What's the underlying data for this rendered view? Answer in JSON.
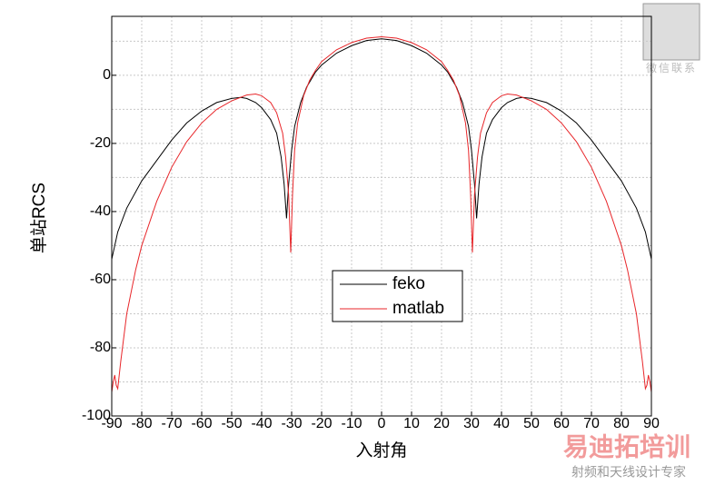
{
  "chart_data": {
    "type": "line",
    "xlabel": "入射角",
    "ylabel": "单站RCS",
    "xlim": [
      -90,
      90
    ],
    "ylim": [
      -100,
      17.3
    ],
    "xticks": [
      -90,
      -80,
      -70,
      -60,
      -50,
      -40,
      -30,
      -20,
      -10,
      0,
      10,
      20,
      30,
      40,
      50,
      60,
      70,
      80,
      90
    ],
    "yticks": [
      -100,
      -80,
      -60,
      -40,
      -20,
      0
    ],
    "y_minor_grid": [
      -90,
      -70,
      -50,
      -30,
      -10,
      10
    ],
    "grid": true,
    "legend": "center",
    "series": [
      {
        "name": "feko",
        "color": "#000000",
        "x": [
          -90,
          -88,
          -85,
          -80,
          -75,
          -70,
          -65,
          -60,
          -55,
          -50,
          -47,
          -45,
          -42,
          -40,
          -37,
          -35,
          -33.5,
          -32.5,
          -31.7,
          -31,
          -30,
          -29,
          -27,
          -25,
          -22,
          -20,
          -15,
          -10,
          -5,
          0,
          5,
          10,
          15,
          20,
          22,
          25,
          27,
          29,
          30,
          31,
          31.7,
          32.5,
          33.5,
          35,
          37,
          40,
          42,
          45,
          47,
          50,
          55,
          60,
          65,
          70,
          75,
          80,
          85,
          88,
          90
        ],
        "values": [
          -54,
          -46,
          -39,
          -31,
          -25,
          -19,
          -14,
          -10.5,
          -8,
          -6.8,
          -6.5,
          -6.8,
          -8,
          -9.5,
          -13,
          -17,
          -24,
          -32,
          -42,
          -32,
          -22,
          -15,
          -8,
          -3.5,
          1,
          3,
          6.5,
          8.7,
          10.2,
          10.7,
          10.2,
          8.7,
          6.5,
          3,
          1,
          -3.5,
          -8,
          -15,
          -22,
          -32,
          -42,
          -32,
          -24,
          -17,
          -13,
          -9.5,
          -8,
          -6.8,
          -6.5,
          -6.8,
          -8,
          -10.5,
          -14,
          -19,
          -25,
          -31,
          -39,
          -46,
          -54
        ]
      },
      {
        "name": "matlab",
        "color": "#e8262a",
        "x": [
          -90,
          -89.5,
          -89,
          -88.5,
          -88,
          -87,
          -85,
          -82,
          -80,
          -75,
          -70,
          -65,
          -60,
          -55,
          -50,
          -45,
          -42,
          -40,
          -37,
          -35,
          -33,
          -32,
          -31,
          -30.3,
          -29.7,
          -29,
          -28,
          -26,
          -24,
          -22,
          -20,
          -15,
          -10,
          -5,
          0,
          5,
          10,
          15,
          20,
          22,
          24,
          26,
          28,
          29,
          29.7,
          30.3,
          31,
          32,
          33,
          35,
          37,
          40,
          42,
          45,
          50,
          55,
          60,
          65,
          70,
          75,
          80,
          82,
          85,
          87,
          88,
          88.5,
          89,
          89.5,
          90
        ],
        "values": [
          -93,
          -90,
          -88,
          -91,
          -92,
          -84,
          -70,
          -57,
          -50,
          -37,
          -27,
          -19.5,
          -14,
          -10,
          -7.5,
          -5.8,
          -5.5,
          -6,
          -8,
          -11,
          -17,
          -24,
          -35,
          -52,
          -35,
          -22,
          -14,
          -6,
          -1.5,
          1.5,
          4,
          7.5,
          9.6,
          10.9,
          11.3,
          10.9,
          9.6,
          7.5,
          4,
          1.5,
          -1.5,
          -6,
          -14,
          -22,
          -35,
          -52,
          -35,
          -24,
          -17,
          -11,
          -8,
          -6,
          -5.5,
          -5.8,
          -7.5,
          -10,
          -14,
          -19.5,
          -27,
          -37,
          -50,
          -57,
          -70,
          -84,
          -92,
          -91,
          -88,
          -90,
          -93
        ]
      }
    ]
  },
  "watermark": {
    "qr_caption": "微信联系",
    "brand": "易迪拓培训",
    "slogan": "射频和天线设计专家"
  }
}
